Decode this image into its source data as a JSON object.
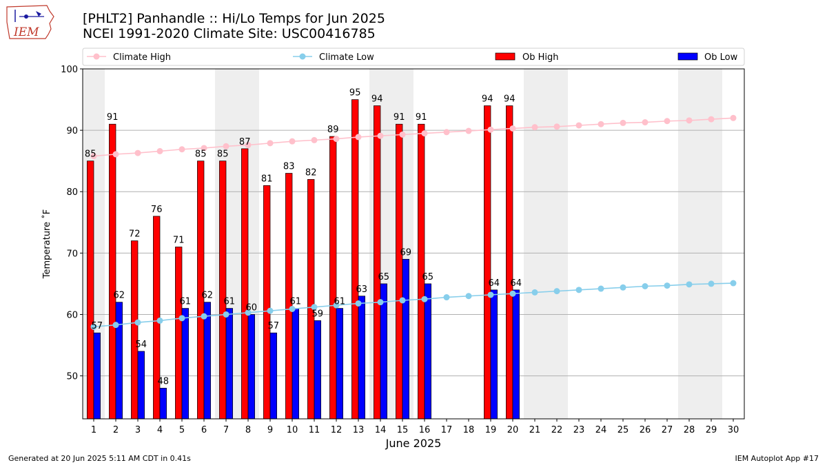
{
  "header": {
    "title_line1": "[PHLT2] Panhandle :: Hi/Lo Temps for Jun 2025",
    "title_line2": "NCEI 1991-2020 Climate Site: USC00416785"
  },
  "logo": {
    "text": "IEM",
    "icon": "iowa-map-logo"
  },
  "footer": {
    "left": "Generated at 20 Jun 2025 5:11 AM CDT in 0.41s",
    "right": "IEM Autoplot App #17"
  },
  "chart_data": {
    "type": "bar",
    "xlabel": "June 2025",
    "ylabel": "Temperature ˚F",
    "ylim": [
      43,
      100
    ],
    "yticks": [
      50,
      60,
      70,
      80,
      90,
      100
    ],
    "days": [
      1,
      2,
      3,
      4,
      5,
      6,
      7,
      8,
      9,
      10,
      11,
      12,
      13,
      14,
      15,
      16,
      17,
      18,
      19,
      20,
      21,
      22,
      23,
      24,
      25,
      26,
      27,
      28,
      29,
      30
    ],
    "weekend_shaded_days": [
      1,
      7,
      8,
      14,
      15,
      21,
      22,
      28,
      29
    ],
    "grid": true,
    "legend_position": "top",
    "legend": [
      "Climate High",
      "Climate Low",
      "Ob High",
      "Ob Low"
    ],
    "series": [
      {
        "name": "Ob High",
        "kind": "bar",
        "color": "#ff0000",
        "values": [
          85,
          91,
          72,
          76,
          71,
          85,
          85,
          87,
          81,
          83,
          82,
          89,
          95,
          94,
          91,
          91,
          null,
          null,
          94,
          94,
          null,
          null,
          null,
          null,
          null,
          null,
          null,
          null,
          null,
          null
        ]
      },
      {
        "name": "Ob Low",
        "kind": "bar",
        "color": "#0000ff",
        "values": [
          57,
          62,
          54,
          48,
          61,
          62,
          61,
          60,
          57,
          61,
          59,
          61,
          63,
          65,
          69,
          65,
          null,
          null,
          64,
          64,
          null,
          null,
          null,
          null,
          null,
          null,
          null,
          null,
          null,
          null
        ]
      },
      {
        "name": "Climate High",
        "kind": "line",
        "color": "#ffc0cb",
        "values": [
          85.8,
          86.1,
          86.3,
          86.6,
          86.9,
          87.1,
          87.4,
          87.6,
          87.9,
          88.2,
          88.4,
          88.6,
          88.9,
          89.1,
          89.3,
          89.5,
          89.7,
          89.9,
          90.1,
          90.3,
          90.5,
          90.6,
          90.8,
          91.0,
          91.2,
          91.3,
          91.5,
          91.6,
          91.8,
          92.0
        ]
      },
      {
        "name": "Climate Low",
        "kind": "line",
        "color": "#87ceeb",
        "values": [
          58.0,
          58.3,
          58.7,
          59.0,
          59.4,
          59.7,
          60.0,
          60.3,
          60.6,
          60.9,
          61.2,
          61.5,
          61.8,
          62.0,
          62.3,
          62.5,
          62.8,
          63.0,
          63.2,
          63.4,
          63.6,
          63.8,
          64.0,
          64.2,
          64.4,
          64.6,
          64.7,
          64.9,
          65.0,
          65.1
        ]
      }
    ]
  }
}
